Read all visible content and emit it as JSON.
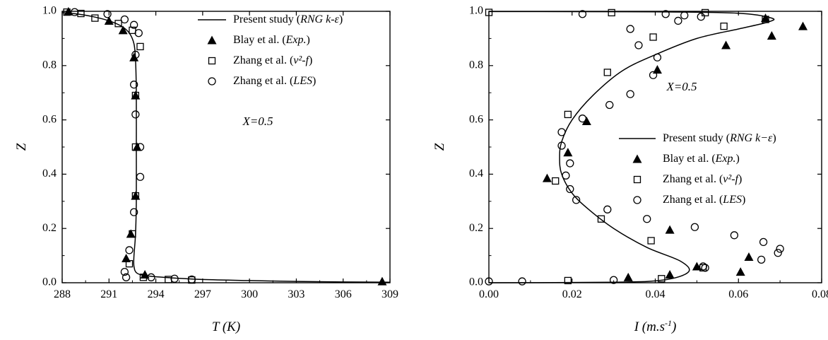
{
  "chart_data": [
    {
      "type": "line",
      "xlabel": "T (K)",
      "ylabel": "Z",
      "xlim": [
        288,
        309
      ],
      "ylim": [
        0.0,
        1.0
      ],
      "x_ticks": [
        "288",
        "291",
        "294",
        "297",
        "300",
        "303",
        "306",
        "309"
      ],
      "y_ticks": [
        "0.0",
        "0.2",
        "0.4",
        "0.6",
        "0.8",
        "1.0"
      ],
      "annotation": "X=0.5",
      "legend_position": "top-right",
      "legend": [
        {
          "plain": "Present study (",
          "italic": "RNG k-ε",
          "tail": ")"
        },
        {
          "plain": "Blay et al. (",
          "italic": "Exp.",
          "tail": ")"
        },
        {
          "plain": "Zhang et al. (",
          "italic": "v²-f",
          "tail": ")"
        },
        {
          "plain": "Zhang et al. (",
          "italic": "LES",
          "tail": ")"
        }
      ],
      "series": [
        {
          "marker": "line",
          "points": [
            [
              288.0,
              0.995
            ],
            [
              289.0,
              0.99
            ],
            [
              290.0,
              0.98
            ],
            [
              291.0,
              0.965
            ],
            [
              291.8,
              0.945
            ],
            [
              292.3,
              0.92
            ],
            [
              292.6,
              0.88
            ],
            [
              292.7,
              0.82
            ],
            [
              292.75,
              0.7
            ],
            [
              292.75,
              0.5
            ],
            [
              292.75,
              0.3
            ],
            [
              292.7,
              0.18
            ],
            [
              292.6,
              0.1
            ],
            [
              292.6,
              0.06
            ],
            [
              292.8,
              0.035
            ],
            [
              293.5,
              0.025
            ],
            [
              295.0,
              0.018
            ],
            [
              297.0,
              0.012
            ],
            [
              300.0,
              0.008
            ],
            [
              303.0,
              0.005
            ],
            [
              306.0,
              0.003
            ],
            [
              309.0,
              0.002
            ]
          ]
        },
        {
          "marker": "triangle",
          "points": [
            [
              288.4,
              0.999
            ],
            [
              291.0,
              0.965
            ],
            [
              291.9,
              0.93
            ],
            [
              292.6,
              0.83
            ],
            [
              292.7,
              0.69
            ],
            [
              292.8,
              0.5
            ],
            [
              292.7,
              0.32
            ],
            [
              292.4,
              0.18
            ],
            [
              292.1,
              0.09
            ],
            [
              293.3,
              0.03
            ],
            [
              308.5,
              0.005
            ]
          ]
        },
        {
          "marker": "square",
          "points": [
            [
              288.3,
              0.997
            ],
            [
              289.2,
              0.992
            ],
            [
              290.1,
              0.975
            ],
            [
              291.6,
              0.955
            ],
            [
              292.5,
              0.93
            ],
            [
              293.0,
              0.87
            ],
            [
              292.7,
              0.69
            ],
            [
              292.7,
              0.5
            ],
            [
              292.7,
              0.32
            ],
            [
              292.5,
              0.18
            ],
            [
              292.3,
              0.07
            ],
            [
              293.2,
              0.02
            ],
            [
              294.8,
              0.012
            ],
            [
              296.3,
              0.01
            ]
          ]
        },
        {
          "marker": "circle",
          "points": [
            [
              288.8,
              0.997
            ],
            [
              290.9,
              0.99
            ],
            [
              292.0,
              0.97
            ],
            [
              292.6,
              0.95
            ],
            [
              292.9,
              0.92
            ],
            [
              292.7,
              0.84
            ],
            [
              292.6,
              0.73
            ],
            [
              292.7,
              0.62
            ],
            [
              293.0,
              0.5
            ],
            [
              293.0,
              0.39
            ],
            [
              292.6,
              0.26
            ],
            [
              292.3,
              0.12
            ],
            [
              292.0,
              0.04
            ],
            [
              292.1,
              0.02
            ],
            [
              293.7,
              0.02
            ],
            [
              295.2,
              0.015
            ],
            [
              296.3,
              0.012
            ]
          ]
        }
      ]
    },
    {
      "type": "line",
      "xlabel": "I (m.s⁻¹)",
      "ylabel": "Z",
      "xlim": [
        0.0,
        0.08
      ],
      "ylim": [
        0.0,
        1.0
      ],
      "x_ticks": [
        "0.00",
        "0.02",
        "0.04",
        "0.06",
        "0.08"
      ],
      "y_ticks": [
        "0.0",
        "0.2",
        "0.4",
        "0.6",
        "0.8",
        "1.0"
      ],
      "annotation": "X=0.5",
      "legend_position": "middle-right",
      "legend": [
        {
          "plain": "Present study (",
          "italic": "RNG k−ε",
          "tail": ")"
        },
        {
          "plain": "Blay et al. (",
          "italic": "Exp.",
          "tail": ")"
        },
        {
          "plain": "Zhang et al. (",
          "italic": "v²-f",
          "tail": ")"
        },
        {
          "plain": "Zhang et al. (",
          "italic": "LES",
          "tail": ")"
        }
      ],
      "series": [
        {
          "marker": "line",
          "points": [
            [
              0.0,
              0.0
            ],
            [
              0.03,
              0.002
            ],
            [
              0.042,
              0.01
            ],
            [
              0.048,
              0.04
            ],
            [
              0.046,
              0.08
            ],
            [
              0.038,
              0.13
            ],
            [
              0.03,
              0.2
            ],
            [
              0.024,
              0.27
            ],
            [
              0.02,
              0.33
            ],
            [
              0.0175,
              0.4
            ],
            [
              0.017,
              0.46
            ],
            [
              0.0175,
              0.52
            ],
            [
              0.02,
              0.6
            ],
            [
              0.025,
              0.69
            ],
            [
              0.032,
              0.78
            ],
            [
              0.04,
              0.84
            ],
            [
              0.05,
              0.9
            ],
            [
              0.06,
              0.935
            ],
            [
              0.067,
              0.96
            ],
            [
              0.068,
              0.975
            ],
            [
              0.06,
              0.993
            ],
            [
              0.04,
              0.998
            ],
            [
              0.0,
              0.999
            ]
          ]
        },
        {
          "marker": "triangle",
          "points": [
            [
              0.0755,
              0.945
            ],
            [
              0.0665,
              0.975
            ],
            [
              0.068,
              0.91
            ],
            [
              0.057,
              0.875
            ],
            [
              0.0405,
              0.785
            ],
            [
              0.0235,
              0.595
            ],
            [
              0.019,
              0.48
            ],
            [
              0.014,
              0.385
            ],
            [
              0.0435,
              0.195
            ],
            [
              0.0625,
              0.095
            ],
            [
              0.0605,
              0.04
            ],
            [
              0.05,
              0.06
            ],
            [
              0.0435,
              0.03
            ],
            [
              0.0335,
              0.02
            ]
          ]
        },
        {
          "marker": "square",
          "points": [
            [
              0.0,
              0.996
            ],
            [
              0.0295,
              0.995
            ],
            [
              0.052,
              0.995
            ],
            [
              0.0665,
              0.97
            ],
            [
              0.0565,
              0.945
            ],
            [
              0.0395,
              0.905
            ],
            [
              0.0285,
              0.775
            ],
            [
              0.019,
              0.62
            ],
            [
              0.016,
              0.375
            ],
            [
              0.027,
              0.235
            ],
            [
              0.039,
              0.155
            ],
            [
              0.0415,
              0.015
            ],
            [
              0.0515,
              0.055
            ],
            [
              0.019,
              0.008
            ]
          ]
        },
        {
          "marker": "circle",
          "points": [
            [
              0.0225,
              0.99
            ],
            [
              0.0425,
              0.99
            ],
            [
              0.047,
              0.985
            ],
            [
              0.051,
              0.98
            ],
            [
              0.0455,
              0.965
            ],
            [
              0.034,
              0.935
            ],
            [
              0.036,
              0.875
            ],
            [
              0.0405,
              0.83
            ],
            [
              0.0395,
              0.765
            ],
            [
              0.034,
              0.695
            ],
            [
              0.029,
              0.655
            ],
            [
              0.0225,
              0.605
            ],
            [
              0.0175,
              0.555
            ],
            [
              0.0175,
              0.505
            ],
            [
              0.0195,
              0.44
            ],
            [
              0.0185,
              0.395
            ],
            [
              0.0195,
              0.345
            ],
            [
              0.021,
              0.305
            ],
            [
              0.0285,
              0.27
            ],
            [
              0.038,
              0.235
            ],
            [
              0.0495,
              0.205
            ],
            [
              0.059,
              0.175
            ],
            [
              0.066,
              0.15
            ],
            [
              0.07,
              0.125
            ],
            [
              0.0695,
              0.11
            ],
            [
              0.0655,
              0.085
            ],
            [
              0.052,
              0.055
            ],
            [
              0.0515,
              0.06
            ],
            [
              0.0,
              0.005
            ],
            [
              0.008,
              0.005
            ],
            [
              0.03,
              0.01
            ]
          ]
        }
      ]
    }
  ]
}
